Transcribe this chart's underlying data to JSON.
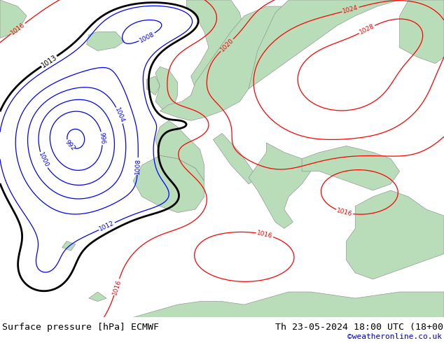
{
  "title_left": "Surface pressure [hPa] ECMWF",
  "title_right": "Th 23-05-2024 18:00 UTC (18+00)",
  "credit": "©weatheronline.co.uk",
  "bg_ocean_color": "#e0e0e0",
  "bg_land_color": "#b8ddb8",
  "fig_width": 6.34,
  "fig_height": 4.9,
  "dpi": 100,
  "bottom_bar_color": "#c8c8c8",
  "title_fontsize": 9.5,
  "credit_fontsize": 8,
  "credit_color": "#0000bb"
}
